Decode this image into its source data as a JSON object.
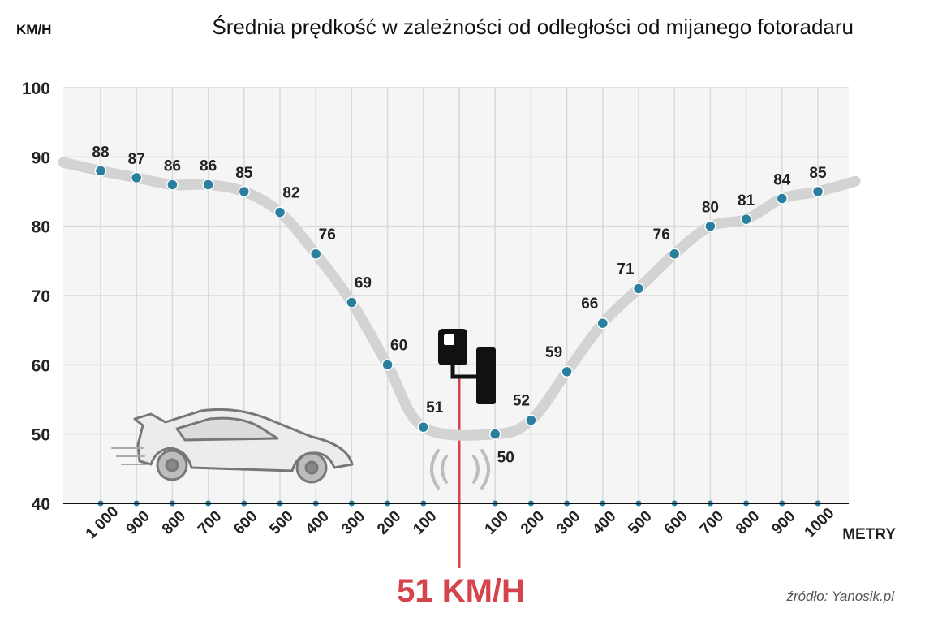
{
  "chart_data": {
    "type": "line",
    "title": "Średnia prędkość w zależności od odległości od mijanego fotoradaru",
    "ylabel": "KM/H",
    "xlabel": "METRY",
    "ylim": [
      40,
      100
    ],
    "yticks": [
      "40",
      "50",
      "60",
      "70",
      "80",
      "90",
      "100"
    ],
    "grid": true,
    "center_label": "51 KM/H",
    "center_value": 51,
    "source": "źródło: Yanosik.pl",
    "categories": [
      "1 000",
      "900",
      "800",
      "700",
      "600",
      "500",
      "400",
      "300",
      "200",
      "100",
      "100",
      "200",
      "300",
      "400",
      "500",
      "600",
      "700",
      "800",
      "900",
      "1000"
    ],
    "series": [
      {
        "values": [
          88,
          87,
          86,
          86,
          85,
          82,
          76,
          69,
          60,
          51,
          50,
          52,
          59,
          66,
          71,
          76,
          80,
          81,
          84,
          85
        ],
        "labels": [
          "88",
          "87",
          "86",
          "86",
          "85",
          "82",
          "76",
          "69",
          "60",
          "51",
          "50",
          "52",
          "59",
          "66",
          "71",
          "76",
          "80",
          "81",
          "84",
          "85"
        ]
      }
    ],
    "colors": {
      "curve": "#d3d3d3",
      "point": "#2a7f9e",
      "center_line": "#d4444a",
      "grid": "#d9d9d9",
      "plot_bg": "#f5f5f5"
    },
    "icons": [
      "speed-camera-icon",
      "car-icon",
      "radar-signal-icon"
    ]
  }
}
